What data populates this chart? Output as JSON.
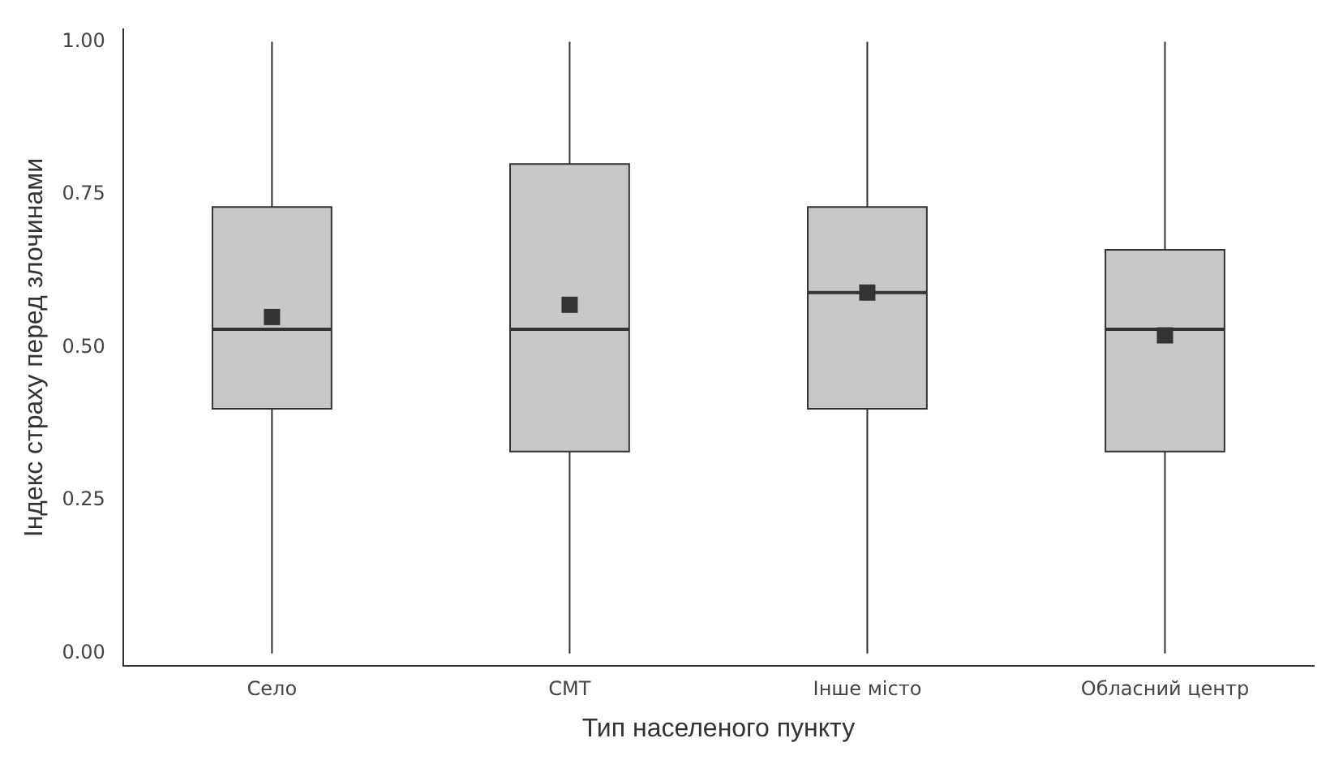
{
  "chart_data": {
    "type": "box",
    "xlabel": "Тип населеного пункту",
    "ylabel": "Індекс страху перед злочинами",
    "categories": [
      "Село",
      "СМТ",
      "Інше місто",
      "Обласний центр"
    ],
    "color": "#c8c8c8",
    "boxes": [
      {
        "low": 0,
        "q1": 0.4,
        "median": 0.53,
        "q3": 0.73,
        "high": 1,
        "mean": 0.55
      },
      {
        "low": 0,
        "q1": 0.33,
        "median": 0.53,
        "q3": 0.8,
        "high": 1,
        "mean": 0.57
      },
      {
        "low": 0,
        "q1": 0.4,
        "median": 0.59,
        "q3": 0.73,
        "high": 1,
        "mean": 0.59
      },
      {
        "low": 0,
        "q1": 0.33,
        "median": 0.53,
        "q3": 0.66,
        "high": 1,
        "mean": 0.52
      }
    ],
    "ylim": [
      -0.02,
      1.02
    ],
    "yticks": [
      {
        "value": 0,
        "label": "0.00"
      },
      {
        "value": 0.25,
        "label": "0.25"
      },
      {
        "value": 0.5,
        "label": "0.50"
      },
      {
        "value": 0.75,
        "label": "0.75"
      },
      {
        "value": 1,
        "label": "1.00"
      }
    ],
    "grid": false,
    "legend": false
  }
}
